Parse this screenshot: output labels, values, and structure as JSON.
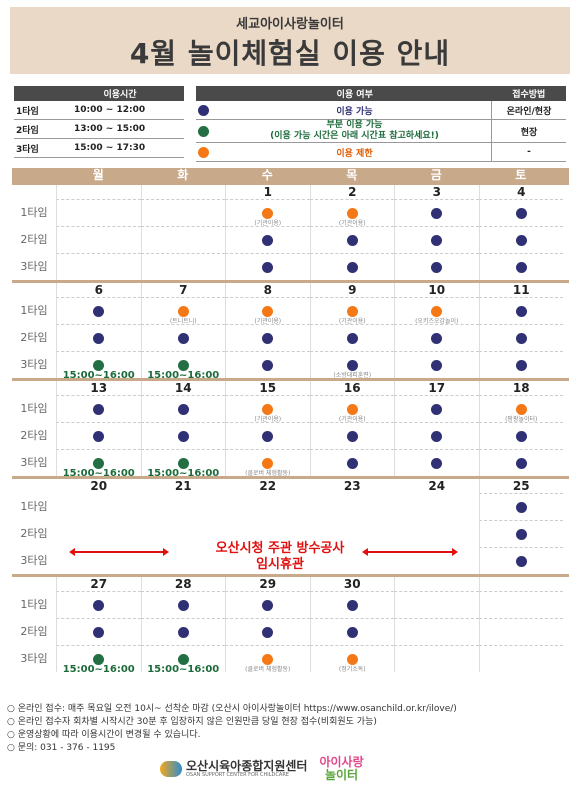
{
  "header": {
    "subtitle": "세교아이사랑놀이터",
    "title": "4월 놀이체험실 이용 안내"
  },
  "time_table": {
    "header": "이용시간",
    "rows": [
      {
        "tier": "1타임",
        "time": "10:00 ~ 12:00"
      },
      {
        "tier": "2타임",
        "time": "13:00 ~ 15:00"
      },
      {
        "tier": "3타임",
        "time": "15:00 ~ 17:30"
      }
    ]
  },
  "status_table": {
    "header_status": "이용 여부",
    "header_method": "접수방법",
    "rows": [
      {
        "color": "navy",
        "text": "이용 가능",
        "method": "온라인/현장"
      },
      {
        "color": "green",
        "text": "부분 이용 가능",
        "text2": "(이용 가능 시간은 아래 시간표 참고하세요!)",
        "method": "현장"
      },
      {
        "color": "orange",
        "text": "이용 제한",
        "method": "-"
      }
    ]
  },
  "weekdays": [
    "월",
    "화",
    "수",
    "목",
    "금",
    "토"
  ],
  "tier_labels": [
    "1타임",
    "2타임",
    "3타임"
  ],
  "weeks": [
    {
      "dates": [
        "",
        "",
        "1",
        "2",
        "3",
        "4"
      ],
      "tiers": [
        [
          null,
          null,
          {
            "c": "orange",
            "n": "(기관이용)"
          },
          {
            "c": "orange",
            "n": "(기관이용)"
          },
          {
            "c": "navy"
          },
          {
            "c": "navy"
          }
        ],
        [
          null,
          null,
          {
            "c": "navy"
          },
          {
            "c": "navy"
          },
          {
            "c": "navy"
          },
          {
            "c": "navy"
          }
        ],
        [
          null,
          null,
          {
            "c": "navy"
          },
          {
            "c": "navy"
          },
          {
            "c": "navy"
          },
          {
            "c": "navy"
          }
        ]
      ]
    },
    {
      "dates": [
        "6",
        "7",
        "8",
        "9",
        "10",
        "11"
      ],
      "tiers": [
        [
          {
            "c": "navy"
          },
          {
            "c": "orange",
            "n": "(트니트니)"
          },
          {
            "c": "orange",
            "n": "(기관이용)"
          },
          {
            "c": "orange",
            "n": "(기관이용)"
          },
          {
            "c": "orange",
            "n": "(오키즈오감놀이)"
          },
          {
            "c": "navy"
          }
        ],
        [
          {
            "c": "navy"
          },
          {
            "c": "navy"
          },
          {
            "c": "navy"
          },
          {
            "c": "navy"
          },
          {
            "c": "navy"
          },
          {
            "c": "navy"
          }
        ],
        [
          {
            "c": "green",
            "t": "15:00~16:00"
          },
          {
            "c": "green",
            "t": "15:00~16:00"
          },
          {
            "c": "navy"
          },
          {
            "c": "navy",
            "n": "(소방대피훈련)"
          },
          {
            "c": "navy"
          },
          {
            "c": "navy"
          }
        ]
      ]
    },
    {
      "dates": [
        "13",
        "14",
        "15",
        "16",
        "17",
        "18"
      ],
      "tiers": [
        [
          {
            "c": "navy"
          },
          {
            "c": "navy"
          },
          {
            "c": "orange",
            "n": "(기관이용)"
          },
          {
            "c": "orange",
            "n": "(기관이용)"
          },
          {
            "c": "navy"
          },
          {
            "c": "orange",
            "n": "(팡팡놀이터)"
          }
        ],
        [
          {
            "c": "navy"
          },
          {
            "c": "navy"
          },
          {
            "c": "navy"
          },
          {
            "c": "navy"
          },
          {
            "c": "navy"
          },
          {
            "c": "navy"
          }
        ],
        [
          {
            "c": "green",
            "t": "15:00~16:00"
          },
          {
            "c": "green",
            "t": "15:00~16:00"
          },
          {
            "c": "orange",
            "n": "(클로버 체험활동)"
          },
          {
            "c": "navy"
          },
          {
            "c": "navy"
          },
          {
            "c": "navy"
          }
        ]
      ]
    },
    {
      "dates": [
        "20",
        "21",
        "22",
        "23",
        "24",
        "25"
      ],
      "tiers": [
        [
          null,
          null,
          null,
          null,
          null,
          {
            "c": "navy"
          }
        ],
        [
          null,
          null,
          null,
          null,
          null,
          {
            "c": "navy"
          }
        ],
        [
          null,
          null,
          null,
          null,
          null,
          {
            "c": "navy"
          }
        ]
      ]
    },
    {
      "dates": [
        "27",
        "28",
        "29",
        "30",
        "",
        ""
      ],
      "tiers": [
        [
          {
            "c": "navy"
          },
          {
            "c": "navy"
          },
          {
            "c": "navy"
          },
          {
            "c": "navy"
          },
          null,
          null
        ],
        [
          {
            "c": "navy"
          },
          {
            "c": "navy"
          },
          {
            "c": "navy"
          },
          {
            "c": "navy"
          },
          null,
          null
        ],
        [
          {
            "c": "green",
            "t": "15:00~16:00"
          },
          {
            "c": "green",
            "t": "15:00~16:00"
          },
          {
            "c": "orange",
            "n": "(클로버 체험활동)"
          },
          {
            "c": "orange",
            "n": "(정기소독)"
          },
          null,
          null
        ]
      ]
    }
  ],
  "closure_notice": [
    "오산시청 주관 방수공사",
    "임시휴관"
  ],
  "notes": [
    "○ 온라인 접수: 매주 목요일 오전 10시~ 선착순 마감 (오산시 아이사랑놀이터 https://www.osanchild.or.kr/ilove/)",
    "○ 온라인 접수자 회차별 시작시간 30분 후 입장하지 않은 인원만큼 당일 현장 접수(비회원도 가능)",
    "○ 운영상황에 따라 이용시간이 변경될 수 있습니다.",
    "○ 문의: 031 - 376 - 1195"
  ],
  "footer": {
    "center_name": "오산시육아종합지원센터",
    "center_en": "OSAN SUPPORT CENTER FOR CHILDCARE",
    "logo2_line1": "아이사랑",
    "logo2_line2": "놀이터"
  }
}
